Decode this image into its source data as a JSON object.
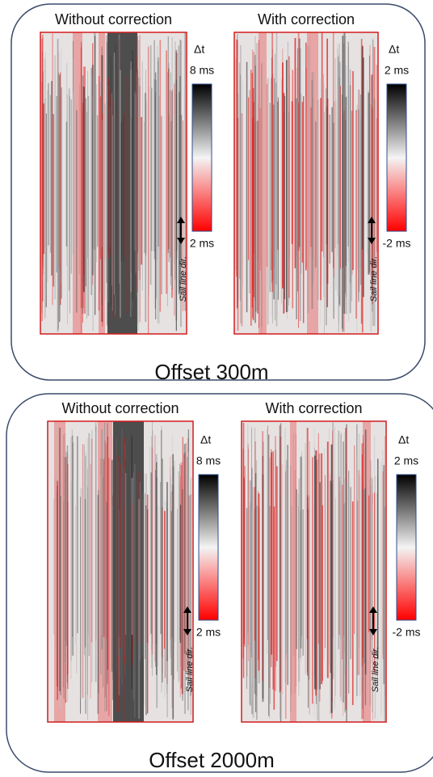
{
  "panels": [
    {
      "caption": "Offset 300m",
      "images": [
        {
          "title": "Without correction",
          "colorbar": {
            "symbol": "Δt",
            "top": "8 ms",
            "bottom": "2 ms"
          },
          "annotation": "Sail line dir."
        },
        {
          "title": "With correction",
          "colorbar": {
            "symbol": "Δt",
            "top": "2 ms",
            "bottom": "-2 ms"
          },
          "annotation": "Sail line dir."
        }
      ]
    },
    {
      "caption": "Offset 2000m",
      "images": [
        {
          "title": "Without correction",
          "colorbar": {
            "symbol": "Δt",
            "top": "8 ms",
            "bottom": "2 ms"
          },
          "annotation": "Sail line dir."
        },
        {
          "title": "With correction",
          "colorbar": {
            "symbol": "Δt",
            "top": "2 ms",
            "bottom": "-2 ms"
          },
          "annotation": "Sail line dir."
        }
      ]
    }
  ]
}
